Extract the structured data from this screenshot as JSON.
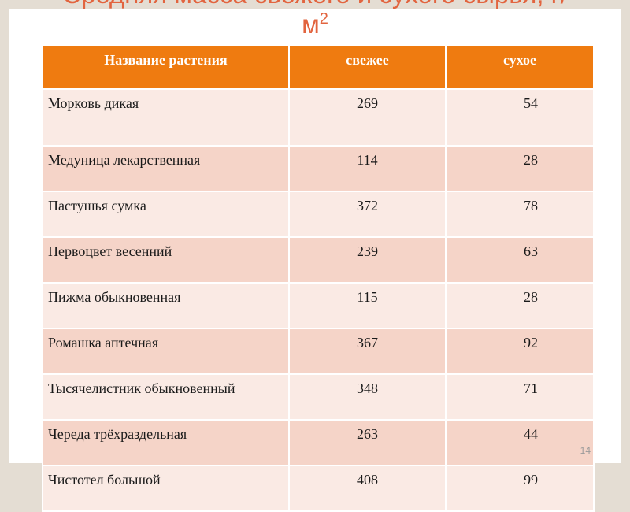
{
  "slide": {
    "title_line1": "Средняя масса свежего и сухого сырья, г/",
    "title_line2": "м",
    "title_sup": "2",
    "page_number": "14"
  },
  "table": {
    "headers": [
      "Название растения",
      "свежее",
      "сухое"
    ],
    "rows": [
      {
        "name": "Морковь дикая",
        "fresh": "269",
        "dry": "54"
      },
      {
        "name": "Медуница лекарственная",
        "fresh": "114",
        "dry": "28"
      },
      {
        "name": "Пастушья сумка",
        "fresh": "372",
        "dry": "78"
      },
      {
        "name": "Первоцвет весенний",
        "fresh": "239",
        "dry": "63"
      },
      {
        "name": "Пижма обыкновенная",
        "fresh": "115",
        "dry": "28"
      },
      {
        "name": "Ромашка аптечная",
        "fresh": "367",
        "dry": "92"
      },
      {
        "name": "Тысячелистник обыкновенный",
        "fresh": "348",
        "dry": "71"
      },
      {
        "name": "Череда трёхраздельная",
        "fresh": "263",
        "dry": "44"
      },
      {
        "name": "Чистотел большой",
        "fresh": "408",
        "dry": "99"
      }
    ]
  },
  "colors": {
    "title": "#e2643f",
    "header_bg": "#ef7b10",
    "row_light": "#faeae4",
    "row_dark": "#f5d4c8"
  }
}
